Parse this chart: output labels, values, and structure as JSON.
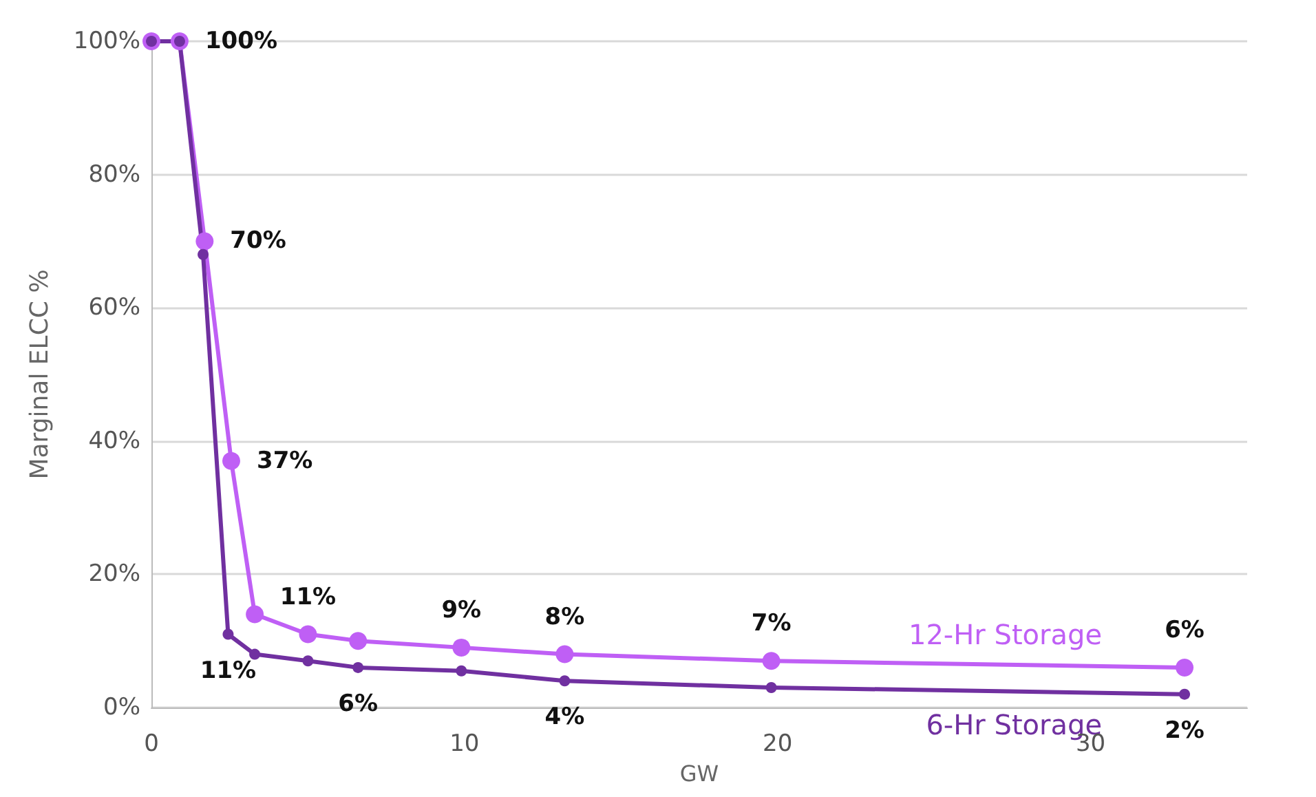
{
  "chart_data": {
    "type": "line",
    "xlabel": "GW",
    "ylabel": "Marginal ELCC %",
    "xlim": [
      0,
      35
    ],
    "xticks": [
      0,
      10,
      20,
      30
    ],
    "ylim": [
      0,
      100
    ],
    "yticks": [
      {
        "value": 0,
        "label": "0%"
      },
      {
        "value": 20,
        "label": "20%"
      },
      {
        "value": 40,
        "label": "40%"
      },
      {
        "value": 60,
        "label": "60%"
      },
      {
        "value": 80,
        "label": "80%"
      },
      {
        "value": 100,
        "label": "100%"
      }
    ],
    "grid": "y",
    "legend": false,
    "marker": "circle",
    "line_style": "solid",
    "series": [
      {
        "name": "12-Hr Storage",
        "color": "#bf5ff5",
        "x": [
          0,
          0.9,
          1.7,
          2.55,
          3.3,
          5.0,
          6.6,
          9.9,
          13.2,
          19.8,
          33
        ],
        "values": [
          100,
          100,
          70,
          37,
          14,
          11,
          10,
          9,
          8,
          7,
          6
        ],
        "value_labels": [
          null,
          "100%",
          "70%",
          "37%",
          null,
          "11%",
          null,
          "9%",
          "8%",
          "7%",
          "6%"
        ]
      },
      {
        "name": "6-Hr Storage",
        "color": "#7030a0",
        "x": [
          0,
          0.9,
          1.65,
          2.45,
          3.3,
          5.0,
          6.6,
          9.9,
          13.2,
          19.8,
          33
        ],
        "values": [
          100,
          100,
          68,
          11,
          8,
          7,
          6,
          5.5,
          4,
          3,
          2
        ],
        "value_labels": [
          null,
          null,
          null,
          "11%",
          null,
          null,
          "6%",
          null,
          "4%",
          null,
          "2%"
        ]
      }
    ]
  }
}
